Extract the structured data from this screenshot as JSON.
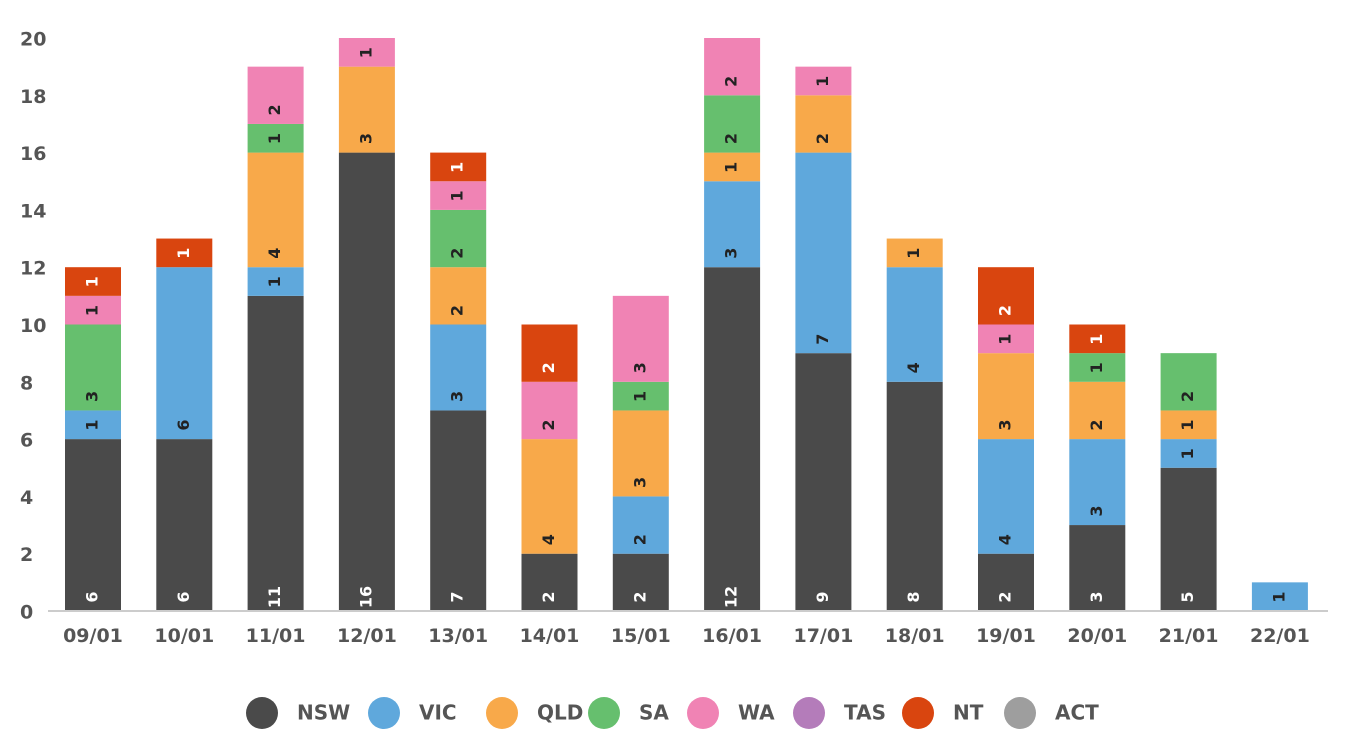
{
  "chart_data": {
    "type": "bar",
    "stacked": true,
    "categories": [
      "09/01",
      "10/01",
      "11/01",
      "12/01",
      "13/01",
      "14/01",
      "15/01",
      "16/01",
      "17/01",
      "18/01",
      "19/01",
      "20/01",
      "21/01",
      "22/01"
    ],
    "series": [
      {
        "name": "NSW",
        "color": "#4a4a4a",
        "label_color": "#ffffff",
        "values": [
          6,
          6,
          11,
          16,
          7,
          2,
          2,
          12,
          9,
          8,
          2,
          3,
          5,
          0
        ]
      },
      {
        "name": "VIC",
        "color": "#5fa8dc",
        "label_color": "#222222",
        "values": [
          1,
          6,
          1,
          0,
          3,
          0,
          2,
          3,
          7,
          4,
          4,
          3,
          1,
          1
        ]
      },
      {
        "name": "QLD",
        "color": "#f8a94a",
        "label_color": "#222222",
        "values": [
          0,
          0,
          4,
          3,
          2,
          4,
          3,
          1,
          2,
          1,
          3,
          2,
          1,
          0
        ]
      },
      {
        "name": "SA",
        "color": "#66bf6e",
        "label_color": "#222222",
        "values": [
          3,
          0,
          1,
          0,
          2,
          0,
          1,
          2,
          0,
          0,
          0,
          1,
          2,
          0
        ]
      },
      {
        "name": "WA",
        "color": "#f083b4",
        "label_color": "#222222",
        "values": [
          1,
          0,
          2,
          1,
          1,
          2,
          3,
          2,
          1,
          0,
          1,
          0,
          0,
          0
        ]
      },
      {
        "name": "TAS",
        "color": "#b47cba",
        "label_color": "#222222",
        "values": [
          0,
          0,
          0,
          0,
          0,
          0,
          0,
          0,
          0,
          0,
          0,
          0,
          0,
          0
        ]
      },
      {
        "name": "NT",
        "color": "#d9450f",
        "label_color": "#ffffff",
        "values": [
          1,
          1,
          0,
          0,
          1,
          2,
          0,
          0,
          0,
          0,
          2,
          1,
          0,
          0
        ]
      },
      {
        "name": "ACT",
        "color": "#9e9e9e",
        "label_color": "#222222",
        "values": [
          0,
          0,
          0,
          0,
          0,
          0,
          0,
          0,
          0,
          0,
          0,
          0,
          0,
          0
        ]
      }
    ],
    "ylim": [
      0,
      20
    ],
    "yticks": [
      "0",
      "2",
      "4",
      "6",
      "8",
      "10",
      "12",
      "14",
      "16",
      "18",
      "20"
    ],
    "grid": false,
    "legend_position": "bottom",
    "title": "",
    "xlabel": "",
    "ylabel": ""
  }
}
